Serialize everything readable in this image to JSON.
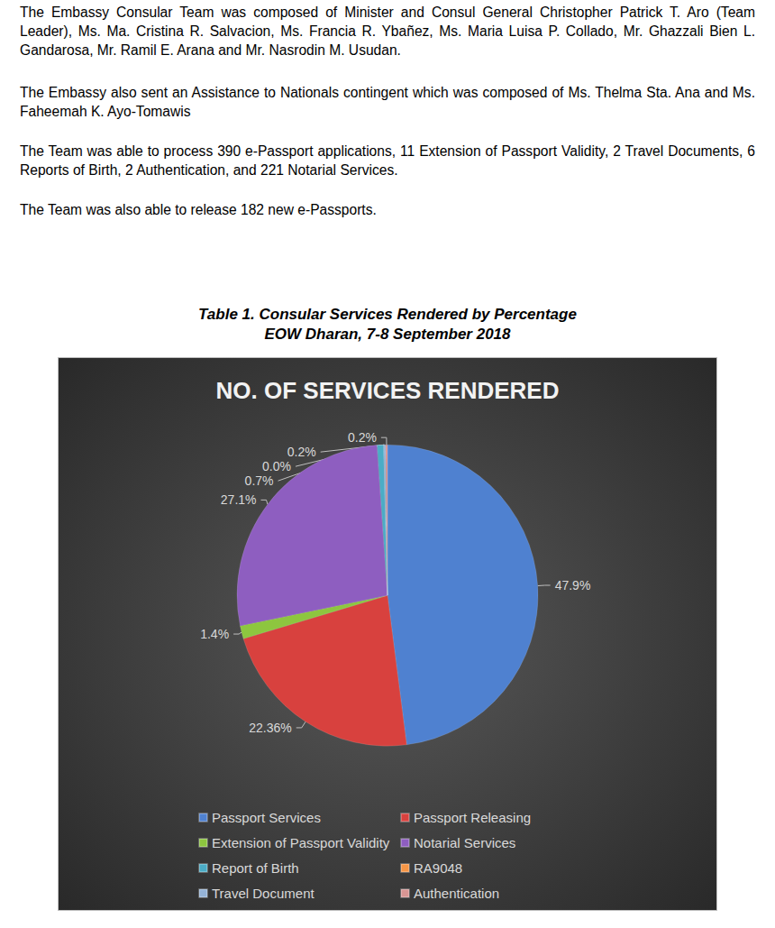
{
  "paragraphs": [
    "The Embassy Consular Team was composed of Minister and Consul General Christopher Patrick T. Aro (Team Leader), Ms. Ma. Cristina R. Salvacion, Ms. Francia R. Ybañez, Ms. Maria Luisa P. Collado, Mr. Ghazzali Bien L. Gandarosa, Mr. Ramil E. Arana and Mr. Nasrodin M. Usudan.",
    "The Embassy also sent an Assistance to Nationals contingent which was composed of Ms. Thelma Sta. Ana and Ms. Faheemah K. Ayo-Tomawis",
    "The Team was able to process 390 e-Passport applications, 11 Extension of Passport Validity, 2 Travel Documents, 6 Reports of Birth, 2 Authentication, and 221 Notarial Services.",
    "The Team was also able to release 182 new e-Passports."
  ],
  "caption": [
    "Table 1.  Consular Services Rendered by Percentage",
    "EOW Dharan,  7-8 September 2018"
  ],
  "chart_data": {
    "type": "pie",
    "title": "NO. OF SERVICES RENDERED",
    "categories": [
      "Passport Services",
      "Passport Releasing",
      "Extension of Passport Validity",
      "Notarial Services",
      "Report of Birth",
      "RA9048",
      "Travel Document",
      "Authentication"
    ],
    "values": [
      47.9,
      22.36,
      1.4,
      27.1,
      0.7,
      0.0,
      0.2,
      0.2
    ],
    "value_labels": [
      "47.9%",
      "22.36%",
      "1.4%",
      "27.1%",
      "0.7%",
      "0.0%",
      "0.2%",
      "0.2%"
    ],
    "colors": [
      "#4f81d0",
      "#d8413e",
      "#8dc63f",
      "#8e5ec0",
      "#4bacc6",
      "#f79646",
      "#95b3d7",
      "#d99694"
    ],
    "data_labels": true,
    "legend": "bottom"
  }
}
